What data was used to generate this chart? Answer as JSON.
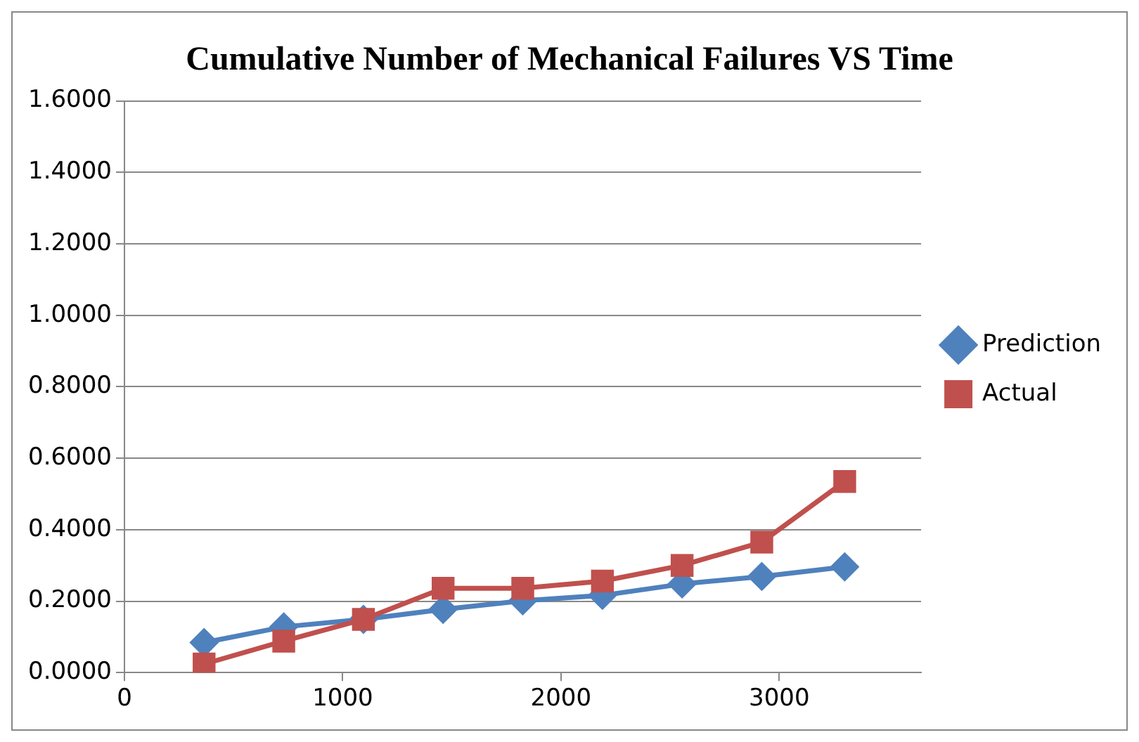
{
  "chart_data": {
    "type": "line",
    "title": "Cumulative Number of Mechanical Failures VS Time",
    "x": [
      365,
      730,
      1095,
      1460,
      1825,
      2190,
      2555,
      2920,
      3300
    ],
    "series": [
      {
        "name": "Prediction",
        "color": "#4f81bd",
        "marker": "diamond",
        "values": [
          0.084,
          0.128,
          0.149,
          0.177,
          0.201,
          0.216,
          0.248,
          0.269,
          0.296
        ]
      },
      {
        "name": "Actual",
        "color": "#c0504d",
        "marker": "square",
        "values": [
          0.024,
          0.088,
          0.149,
          0.236,
          0.236,
          0.256,
          0.3,
          0.365,
          0.535
        ]
      }
    ],
    "xlim": [
      0,
      3650
    ],
    "xticks": [
      0,
      1000,
      2000,
      3000
    ],
    "ylim": [
      0,
      1.6
    ],
    "yticks": [
      {
        "value": 0,
        "label": "0.0000"
      },
      {
        "value": 0.2,
        "label": "0.2000"
      },
      {
        "value": 0.4,
        "label": "0.4000"
      },
      {
        "value": 0.6,
        "label": "0.6000"
      },
      {
        "value": 0.8,
        "label": "0.8000"
      },
      {
        "value": 1.0,
        "label": "1.0000"
      },
      {
        "value": 1.2,
        "label": "1.2000"
      },
      {
        "value": 1.4,
        "label": "1.4000"
      },
      {
        "value": 1.6,
        "label": "1.6000"
      }
    ],
    "grid": "y",
    "legend": "right"
  }
}
